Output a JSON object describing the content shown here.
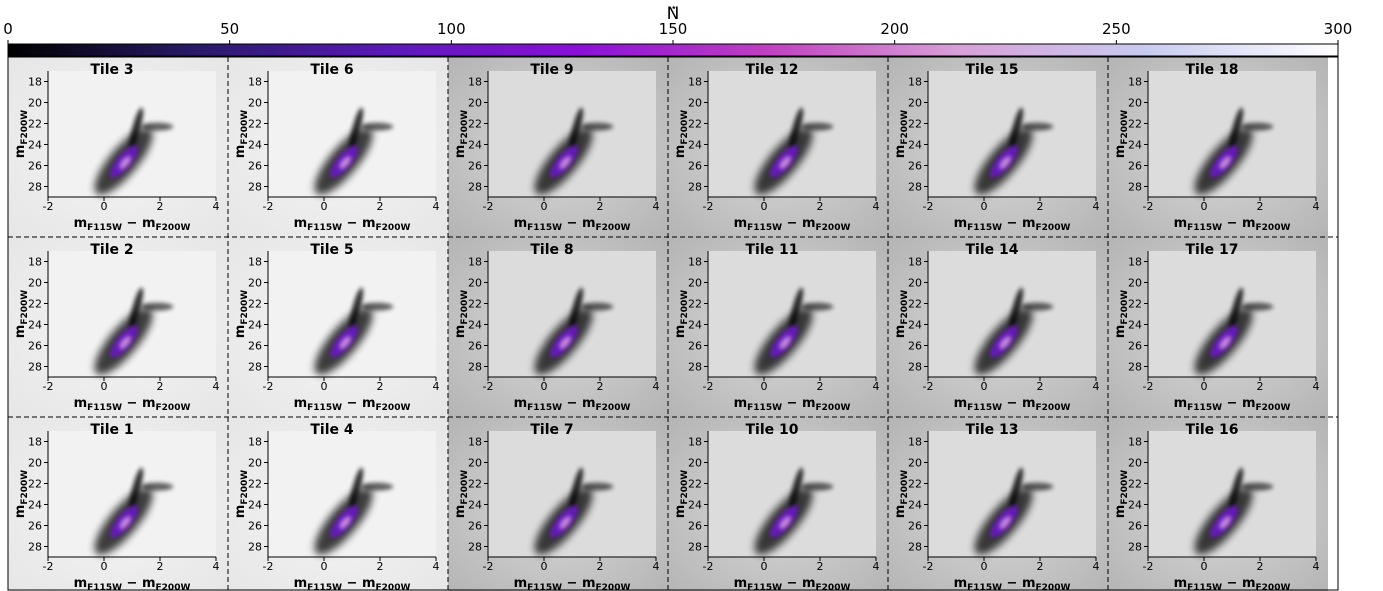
{
  "chart_data": [
    {
      "type": "colorbar",
      "label": "N",
      "label_sub": "⋆",
      "xlim": [
        0,
        300
      ],
      "xticks": [
        0,
        50,
        100,
        150,
        200,
        250,
        300
      ],
      "colors": [
        "#000000",
        "#2a1a6a",
        "#5a1ab8",
        "#8a10d8",
        "#c040c0",
        "#d8a0d8",
        "#c8ccf0",
        "#ffffff"
      ]
    },
    {
      "type": "hess",
      "title": "Tile 3",
      "xlim": [
        -2,
        4
      ],
      "ylim": [
        29,
        17
      ],
      "xticks": [
        -2,
        0,
        2,
        4
      ],
      "yticks": [
        18,
        20,
        22,
        24,
        26,
        28
      ],
      "x_label": [
        {
          "text": "m",
          "sub": "F115W"
        },
        {
          "text": " − m",
          "sub": "F200W"
        }
      ],
      "y_label": {
        "text": "m",
        "sub": "F200W"
      }
    },
    {
      "type": "hess",
      "title": "Tile 6",
      "xlim": [
        -2,
        4
      ],
      "ylim": [
        29,
        17
      ],
      "xticks": [
        -2,
        0,
        2,
        4
      ],
      "yticks": [
        18,
        20,
        22,
        24,
        26,
        28
      ],
      "x_label": [
        {
          "text": "m",
          "sub": "F115W"
        },
        {
          "text": " − m",
          "sub": "F200W"
        }
      ],
      "y_label": {
        "text": "m",
        "sub": "F200W"
      }
    },
    {
      "type": "hess",
      "title": "Tile 9",
      "xlim": [
        -2,
        4
      ],
      "ylim": [
        29,
        17
      ],
      "xticks": [
        -2,
        0,
        2,
        4
      ],
      "yticks": [
        18,
        20,
        22,
        24,
        26,
        28
      ],
      "x_label": [
        {
          "text": "m",
          "sub": "F115W"
        },
        {
          "text": " − m",
          "sub": "F200W"
        }
      ],
      "y_label": {
        "text": "m",
        "sub": "F200W"
      }
    },
    {
      "type": "hess",
      "title": "Tile 12",
      "xlim": [
        -2,
        4
      ],
      "ylim": [
        29,
        17
      ],
      "xticks": [
        -2,
        0,
        2,
        4
      ],
      "yticks": [
        18,
        20,
        22,
        24,
        26,
        28
      ],
      "x_label": [
        {
          "text": "m",
          "sub": "F115W"
        },
        {
          "text": " − m",
          "sub": "F200W"
        }
      ],
      "y_label": {
        "text": "m",
        "sub": "F200W"
      }
    },
    {
      "type": "hess",
      "title": "Tile 15",
      "xlim": [
        -2,
        4
      ],
      "ylim": [
        29,
        17
      ],
      "xticks": [
        -2,
        0,
        2,
        4
      ],
      "yticks": [
        18,
        20,
        22,
        24,
        26,
        28
      ],
      "x_label": [
        {
          "text": "m",
          "sub": "F115W"
        },
        {
          "text": " − m",
          "sub": "F200W"
        }
      ],
      "y_label": {
        "text": "m",
        "sub": "F200W"
      }
    },
    {
      "type": "hess",
      "title": "Tile 18",
      "xlim": [
        -2,
        4
      ],
      "ylim": [
        29,
        17
      ],
      "xticks": [
        -2,
        0,
        2,
        4
      ],
      "yticks": [
        18,
        20,
        22,
        24,
        26,
        28
      ],
      "x_label": [
        {
          "text": "m",
          "sub": "F115W"
        },
        {
          "text": " − m",
          "sub": "F200W"
        }
      ],
      "y_label": {
        "text": "m",
        "sub": "F200W"
      }
    },
    {
      "type": "hess",
      "title": "Tile 2",
      "xlim": [
        -2,
        4
      ],
      "ylim": [
        29,
        17
      ],
      "xticks": [
        -2,
        0,
        2,
        4
      ],
      "yticks": [
        18,
        20,
        22,
        24,
        26,
        28
      ],
      "x_label": [
        {
          "text": "m",
          "sub": "F115W"
        },
        {
          "text": " − m",
          "sub": "F200W"
        }
      ],
      "y_label": {
        "text": "m",
        "sub": "F200W"
      }
    },
    {
      "type": "hess",
      "title": "Tile 5",
      "xlim": [
        -2,
        4
      ],
      "ylim": [
        29,
        17
      ],
      "xticks": [
        -2,
        0,
        2,
        4
      ],
      "yticks": [
        18,
        20,
        22,
        24,
        26,
        28
      ],
      "x_label": [
        {
          "text": "m",
          "sub": "F115W"
        },
        {
          "text": " − m",
          "sub": "F200W"
        }
      ],
      "y_label": {
        "text": "m",
        "sub": "F200W"
      }
    },
    {
      "type": "hess",
      "title": "Tile 8",
      "xlim": [
        -2,
        4
      ],
      "ylim": [
        29,
        17
      ],
      "xticks": [
        -2,
        0,
        2,
        4
      ],
      "yticks": [
        18,
        20,
        22,
        24,
        26,
        28
      ],
      "x_label": [
        {
          "text": "m",
          "sub": "F115W"
        },
        {
          "text": " − m",
          "sub": "F200W"
        }
      ],
      "y_label": {
        "text": "m",
        "sub": "F200W"
      }
    },
    {
      "type": "hess",
      "title": "Tile 11",
      "xlim": [
        -2,
        4
      ],
      "ylim": [
        29,
        17
      ],
      "xticks": [
        -2,
        0,
        2,
        4
      ],
      "yticks": [
        18,
        20,
        22,
        24,
        26,
        28
      ],
      "x_label": [
        {
          "text": "m",
          "sub": "F115W"
        },
        {
          "text": " − m",
          "sub": "F200W"
        }
      ],
      "y_label": {
        "text": "m",
        "sub": "F200W"
      }
    },
    {
      "type": "hess",
      "title": "Tile 14",
      "xlim": [
        -2,
        4
      ],
      "ylim": [
        29,
        17
      ],
      "xticks": [
        -2,
        0,
        2,
        4
      ],
      "yticks": [
        18,
        20,
        22,
        24,
        26,
        28
      ],
      "x_label": [
        {
          "text": "m",
          "sub": "F115W"
        },
        {
          "text": " − m",
          "sub": "F200W"
        }
      ],
      "y_label": {
        "text": "m",
        "sub": "F200W"
      }
    },
    {
      "type": "hess",
      "title": "Tile 17",
      "xlim": [
        -2,
        4
      ],
      "ylim": [
        29,
        17
      ],
      "xticks": [
        -2,
        0,
        2,
        4
      ],
      "yticks": [
        18,
        20,
        22,
        24,
        26,
        28
      ],
      "x_label": [
        {
          "text": "m",
          "sub": "F115W"
        },
        {
          "text": " − m",
          "sub": "F200W"
        }
      ],
      "y_label": {
        "text": "m",
        "sub": "F200W"
      }
    },
    {
      "type": "hess",
      "title": "Tile 1",
      "xlim": [
        -2,
        4
      ],
      "ylim": [
        29,
        17
      ],
      "xticks": [
        -2,
        0,
        2,
        4
      ],
      "yticks": [
        18,
        20,
        22,
        24,
        26,
        28
      ],
      "x_label": [
        {
          "text": "m",
          "sub": "F115W"
        },
        {
          "text": " − m",
          "sub": "F200W"
        }
      ],
      "y_label": {
        "text": "m",
        "sub": "F200W"
      }
    },
    {
      "type": "hess",
      "title": "Tile 4",
      "xlim": [
        -2,
        4
      ],
      "ylim": [
        29,
        17
      ],
      "xticks": [
        -2,
        0,
        2,
        4
      ],
      "yticks": [
        18,
        20,
        22,
        24,
        26,
        28
      ],
      "x_label": [
        {
          "text": "m",
          "sub": "F115W"
        },
        {
          "text": " − m",
          "sub": "F200W"
        }
      ],
      "y_label": {
        "text": "m",
        "sub": "F200W"
      }
    },
    {
      "type": "hess",
      "title": "Tile 7",
      "xlim": [
        -2,
        4
      ],
      "ylim": [
        29,
        17
      ],
      "xticks": [
        -2,
        0,
        2,
        4
      ],
      "yticks": [
        18,
        20,
        22,
        24,
        26,
        28
      ],
      "x_label": [
        {
          "text": "m",
          "sub": "F115W"
        },
        {
          "text": " − m",
          "sub": "F200W"
        }
      ],
      "y_label": {
        "text": "m",
        "sub": "F200W"
      }
    },
    {
      "type": "hess",
      "title": "Tile 10",
      "xlim": [
        -2,
        4
      ],
      "ylim": [
        29,
        17
      ],
      "xticks": [
        -2,
        0,
        2,
        4
      ],
      "yticks": [
        18,
        20,
        22,
        24,
        26,
        28
      ],
      "x_label": [
        {
          "text": "m",
          "sub": "F115W"
        },
        {
          "text": " − m",
          "sub": "F200W"
        }
      ],
      "y_label": {
        "text": "m",
        "sub": "F200W"
      }
    },
    {
      "type": "hess",
      "title": "Tile 13",
      "xlim": [
        -2,
        4
      ],
      "ylim": [
        29,
        17
      ],
      "xticks": [
        -2,
        0,
        2,
        4
      ],
      "yticks": [
        18,
        20,
        22,
        24,
        26,
        28
      ],
      "x_label": [
        {
          "text": "m",
          "sub": "F115W"
        },
        {
          "text": " − m",
          "sub": "F200W"
        }
      ],
      "y_label": {
        "text": "m",
        "sub": "F200W"
      }
    },
    {
      "type": "hess",
      "title": "Tile 16",
      "xlim": [
        -2,
        4
      ],
      "ylim": [
        29,
        17
      ],
      "xticks": [
        -2,
        0,
        2,
        4
      ],
      "yticks": [
        18,
        20,
        22,
        24,
        26,
        28
      ],
      "x_label": [
        {
          "text": "m",
          "sub": "F115W"
        },
        {
          "text": " − m",
          "sub": "F200W"
        }
      ],
      "y_label": {
        "text": "m",
        "sub": "F200W"
      }
    }
  ]
}
